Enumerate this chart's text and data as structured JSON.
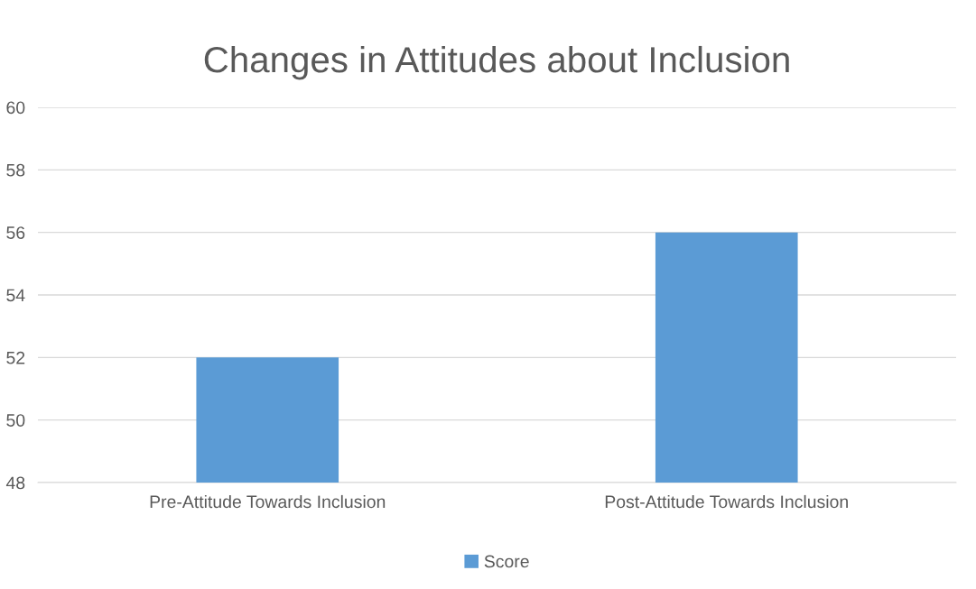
{
  "chart_data": {
    "type": "bar",
    "title": "Changes in Attitudes about Inclusion",
    "categories": [
      "Pre-Attitude Towards Inclusion",
      "Post-Attitude Towards Inclusion"
    ],
    "series": [
      {
        "name": "Score",
        "color": "#5b9bd5",
        "values": [
          52,
          56
        ]
      }
    ],
    "ylim": [
      48,
      60
    ],
    "yticks": [
      48,
      50,
      52,
      54,
      56,
      58,
      60
    ],
    "grid": "y",
    "legend": "bottom"
  }
}
